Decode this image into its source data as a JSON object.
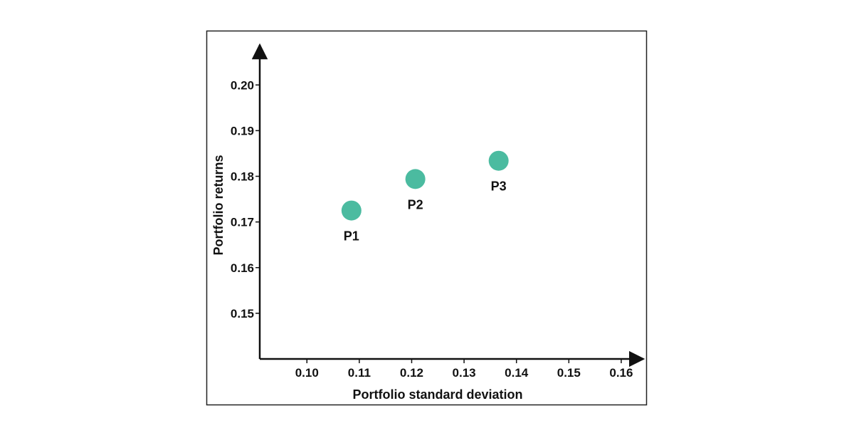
{
  "chart_data": {
    "type": "scatter",
    "title": "",
    "xlabel": "Portfolio standard deviation",
    "ylabel": "Portfolio returns",
    "x_ticks": [
      "0.10",
      "0.11",
      "0.12",
      "0.13",
      "0.14",
      "0.15",
      "0.16"
    ],
    "y_ticks": [
      "0.15",
      "0.16",
      "0.17",
      "0.18",
      "0.19",
      "0.20"
    ],
    "xlim": [
      0.091,
      0.163
    ],
    "ylim": [
      0.14,
      0.208
    ],
    "grid": false,
    "point_color": "#4bbba0",
    "points": [
      {
        "label": "P1",
        "x": 0.1085,
        "y": 0.1725
      },
      {
        "label": "P2",
        "x": 0.1207,
        "y": 0.1794
      },
      {
        "label": "P3",
        "x": 0.1366,
        "y": 0.1834
      }
    ]
  }
}
